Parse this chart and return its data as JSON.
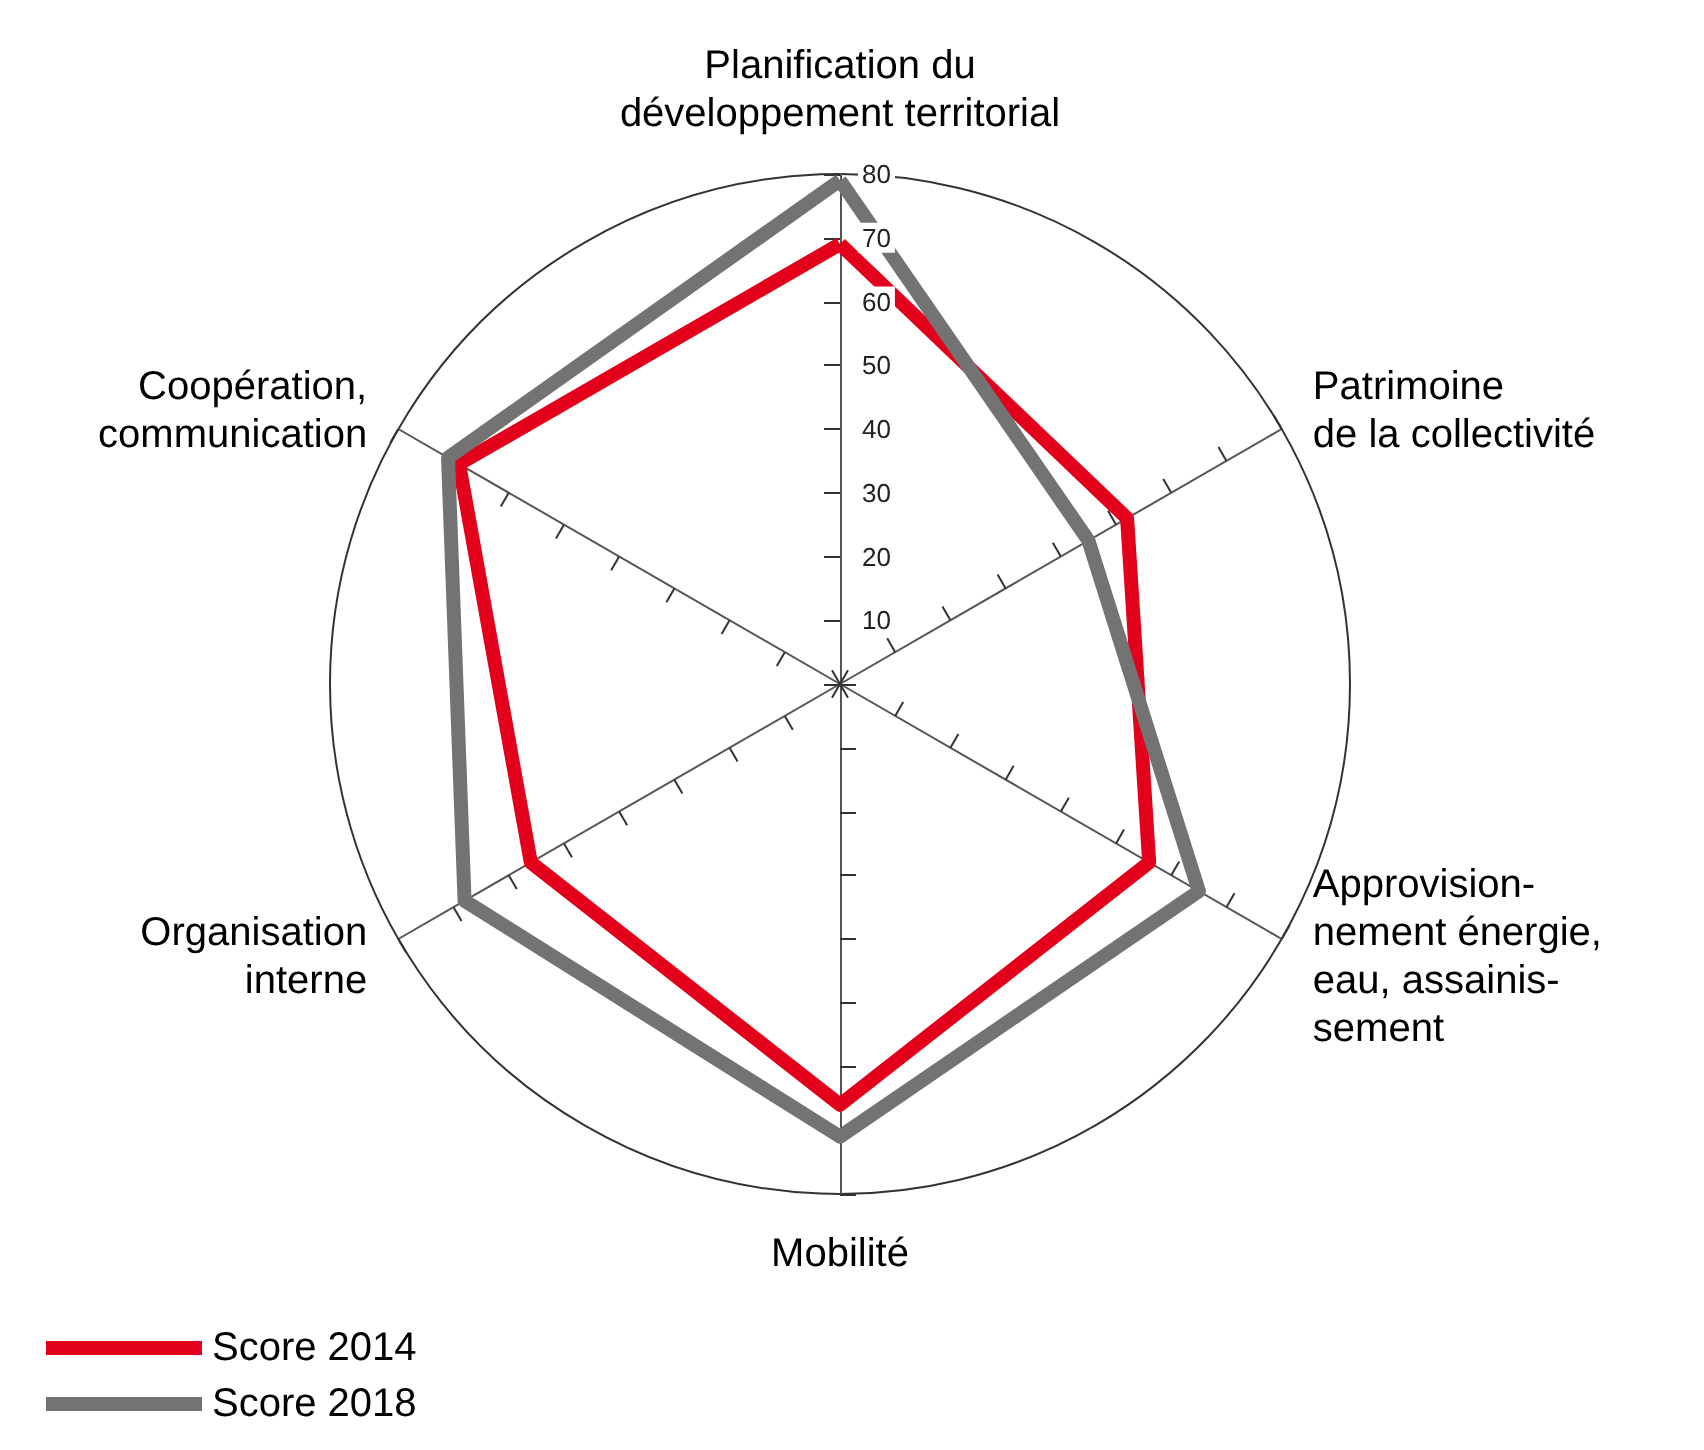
{
  "chart_data": {
    "type": "radar",
    "categories": [
      "Planification du\ndéveloppement territorial",
      "Patrimoine\nde la collectivité",
      "Approvision-\nnement énergie,\neau, assainis-\nsement",
      "Mobilité",
      "Organisation\ninterne",
      "Coopération,\ncommunication"
    ],
    "series": [
      {
        "name": "Score 2014",
        "color": "#e2001a",
        "values": [
          69,
          52,
          56,
          66,
          56,
          69
        ]
      },
      {
        "name": "Score 2018",
        "color": "#737373",
        "values": [
          79,
          45,
          65,
          71,
          68,
          71
        ]
      }
    ],
    "ylim": [
      0,
      80
    ],
    "yticks": [
      10,
      20,
      30,
      40,
      50,
      60,
      70,
      80
    ],
    "grid": false,
    "legend": "bottom left",
    "marker": "none",
    "line_style": "solid"
  }
}
